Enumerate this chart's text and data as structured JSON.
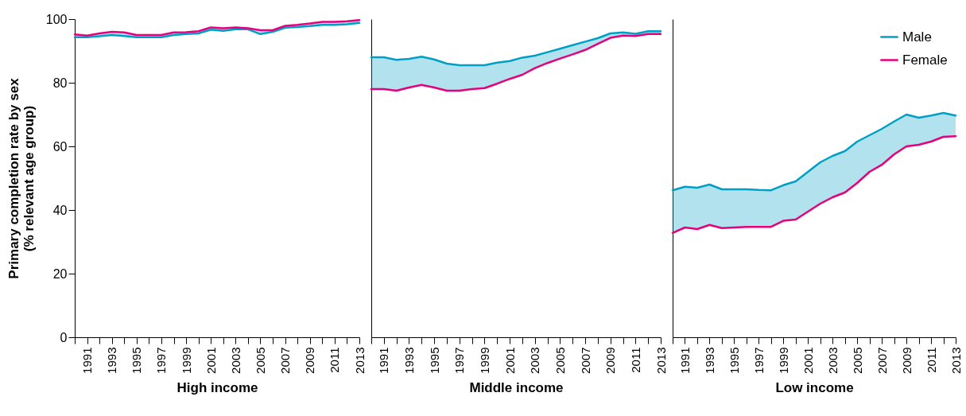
{
  "chart_data": [
    {
      "type": "line",
      "xlabel": "High income",
      "ylabel": "Primary completion rate by sex\n(% relevant age group)",
      "x": [
        1990,
        1991,
        1992,
        1993,
        1994,
        1995,
        1996,
        1997,
        1998,
        1999,
        2000,
        2001,
        2002,
        2003,
        2004,
        2005,
        2006,
        2007,
        2008,
        2009,
        2010,
        2011,
        2012,
        2013
      ],
      "xlim": [
        1990,
        2013
      ],
      "xticks": [
        {
          "value": 1990,
          "label": null
        },
        1991,
        {
          "value": 1992,
          "label": null
        },
        1993,
        {
          "value": 1994,
          "label": null
        },
        1995,
        {
          "value": 1996,
          "label": null
        },
        1997,
        {
          "value": 1998,
          "label": null
        },
        1999,
        {
          "value": 2000,
          "label": null
        },
        2001,
        {
          "value": 2002,
          "label": null
        },
        2003,
        {
          "value": 2004,
          "label": null
        },
        2005,
        {
          "value": 2006,
          "label": null
        },
        2007,
        {
          "value": 2008,
          "label": null
        },
        2009,
        {
          "value": 2010,
          "label": null
        },
        2011,
        {
          "value": 2012,
          "label": null
        },
        2013
      ],
      "ylim": [
        0,
        100
      ],
      "yticks": [
        0,
        20,
        40,
        60,
        80,
        100
      ],
      "grid": false,
      "legend": false,
      "series": [
        {
          "color": "#00a0c6",
          "values": [
            94.3,
            94.3,
            94.6,
            95,
            94.7,
            94.3,
            94.3,
            94.3,
            95,
            95.3,
            95.5,
            96.7,
            96.3,
            96.8,
            96.8,
            95.3,
            96,
            97.3,
            97.5,
            97.8,
            98.2,
            98.2,
            98.4,
            98.8
          ],
          "lower": [
            94.3,
            94.3,
            94.6,
            95,
            94.7,
            94.3,
            94.3,
            94.3,
            95,
            95.3,
            95.5,
            96.7,
            96.3,
            96.8,
            96.8,
            95.3,
            96,
            97.3,
            97.5,
            97.8,
            98.2,
            98.2,
            98.4,
            98.8
          ],
          "upper": [
            95.2,
            94.8,
            95.5,
            96,
            95.8,
            95,
            95,
            95,
            95.8,
            95.9,
            96.2,
            97.4,
            97.1,
            97.4,
            97.1,
            96.5,
            96.5,
            97.9,
            98.2,
            98.6,
            99.1,
            99.1,
            99.3,
            99.7
          ]
        },
        {
          "color": "#e6007e",
          "values": [
            95.2,
            94.8,
            95.5,
            96,
            95.8,
            95,
            95,
            95,
            95.8,
            95.9,
            96.2,
            97.4,
            97.1,
            97.4,
            97.1,
            96.5,
            96.5,
            97.9,
            98.2,
            98.6,
            99.1,
            99.1,
            99.3,
            99.7
          ]
        }
      ]
    },
    {
      "type": "line",
      "xlabel": "Middle income",
      "x": [
        1990,
        1991,
        1992,
        1993,
        1994,
        1995,
        1996,
        1997,
        1998,
        1999,
        2000,
        2001,
        2002,
        2003,
        2004,
        2005,
        2006,
        2007,
        2008,
        2009,
        2010,
        2011,
        2012,
        2013
      ],
      "xlim": [
        1990,
        2013
      ],
      "xticks": [
        {
          "value": 1990,
          "label": null
        },
        1991,
        {
          "value": 1992,
          "label": null
        },
        1993,
        {
          "value": 1994,
          "label": null
        },
        1995,
        {
          "value": 1996,
          "label": null
        },
        1997,
        {
          "value": 1998,
          "label": null
        },
        1999,
        {
          "value": 2000,
          "label": null
        },
        2001,
        {
          "value": 2002,
          "label": null
        },
        2003,
        {
          "value": 2004,
          "label": null
        },
        2005,
        {
          "value": 2006,
          "label": null
        },
        2007,
        {
          "value": 2008,
          "label": null
        },
        2009,
        {
          "value": 2010,
          "label": null
        },
        2011,
        {
          "value": 2012,
          "label": null
        },
        2013
      ],
      "ylim": [
        0,
        100
      ],
      "yticks": [
        0,
        20,
        40,
        60,
        80,
        100
      ],
      "tick_labels": "x",
      "grid": false,
      "legend": false,
      "series": [
        {
          "color": "#00a0c6",
          "values": [
            88,
            88,
            87.2,
            87.5,
            88.2,
            87.3,
            86,
            85.5,
            85.5,
            85.5,
            86.3,
            86.8,
            87.9,
            88.5,
            89.6,
            90.7,
            91.8,
            92.9,
            94,
            95.5,
            95.8,
            95.4,
            96.2,
            96.2
          ],
          "lower": [
            78,
            78,
            77.5,
            78.5,
            79.3,
            78.5,
            77.5,
            77.5,
            78,
            78.3,
            79.7,
            81.2,
            82.5,
            84.6,
            86.2,
            87.6,
            88.9,
            90.3,
            92.2,
            94.1,
            94.8,
            94.7,
            95.3,
            95.3
          ],
          "upper": [
            88,
            88,
            87.2,
            87.5,
            88.2,
            87.3,
            86,
            85.5,
            85.5,
            85.5,
            86.3,
            86.8,
            87.9,
            88.5,
            89.6,
            90.7,
            91.8,
            92.9,
            94,
            95.5,
            95.8,
            95.4,
            96.2,
            96.2
          ]
        },
        {
          "color": "#e6007e",
          "values": [
            78,
            78,
            77.5,
            78.5,
            79.3,
            78.5,
            77.5,
            77.5,
            78,
            78.3,
            79.7,
            81.2,
            82.5,
            84.6,
            86.2,
            87.6,
            88.9,
            90.3,
            92.2,
            94.1,
            94.8,
            94.7,
            95.3,
            95.3
          ]
        }
      ]
    },
    {
      "type": "line",
      "xlabel": "Low income",
      "x": [
        1990,
        1991,
        1992,
        1993,
        1994,
        1995,
        1996,
        1997,
        1998,
        1999,
        2000,
        2001,
        2002,
        2003,
        2004,
        2005,
        2006,
        2007,
        2008,
        2009,
        2010,
        2011,
        2012,
        2013
      ],
      "xlim": [
        1990,
        2013
      ],
      "xticks": [
        {
          "value": 1990,
          "label": null
        },
        1991,
        {
          "value": 1992,
          "label": null
        },
        1993,
        {
          "value": 1994,
          "label": null
        },
        1995,
        {
          "value": 1996,
          "label": null
        },
        1997,
        {
          "value": 1998,
          "label": null
        },
        1999,
        {
          "value": 2000,
          "label": null
        },
        2001,
        {
          "value": 2002,
          "label": null
        },
        2003,
        {
          "value": 2004,
          "label": null
        },
        2005,
        {
          "value": 2006,
          "label": null
        },
        2007,
        {
          "value": 2008,
          "label": null
        },
        2009,
        {
          "value": 2010,
          "label": null
        },
        2011,
        {
          "value": 2012,
          "label": null
        },
        2013
      ],
      "ylim": [
        0,
        100
      ],
      "yticks": [
        0,
        20,
        40,
        60,
        80,
        100
      ],
      "tick_labels": "x",
      "grid": false,
      "legend": "top right",
      "series": [
        {
          "name": "Male",
          "color": "#00a0c6",
          "values": [
            46.2,
            47.3,
            47,
            48,
            46.5,
            46.5,
            46.5,
            46.3,
            46.2,
            47.8,
            49,
            52,
            55,
            57,
            58.5,
            61.5,
            63.5,
            65.5,
            67.8,
            70,
            69,
            69.7,
            70.5,
            69.7
          ],
          "lower": [
            32.8,
            34.5,
            34,
            35.3,
            34.3,
            34.5,
            34.7,
            34.7,
            34.7,
            36.6,
            37,
            39.5,
            42,
            44,
            45.5,
            48.5,
            52,
            54.2,
            57.5,
            60,
            60.5,
            61.5,
            63,
            63.2
          ],
          "upper": [
            46.2,
            47.3,
            47,
            48,
            46.5,
            46.5,
            46.5,
            46.3,
            46.2,
            47.8,
            49,
            52,
            55,
            57,
            58.5,
            61.5,
            63.5,
            65.5,
            67.8,
            70,
            69,
            69.7,
            70.5,
            69.7
          ]
        },
        {
          "name": "Female",
          "color": "#e6007e",
          "values": [
            32.8,
            34.5,
            34,
            35.3,
            34.3,
            34.5,
            34.7,
            34.7,
            34.7,
            36.6,
            37,
            39.5,
            42,
            44,
            45.5,
            48.5,
            52,
            54.2,
            57.5,
            60,
            60.5,
            61.5,
            63,
            63.2
          ]
        }
      ]
    }
  ]
}
